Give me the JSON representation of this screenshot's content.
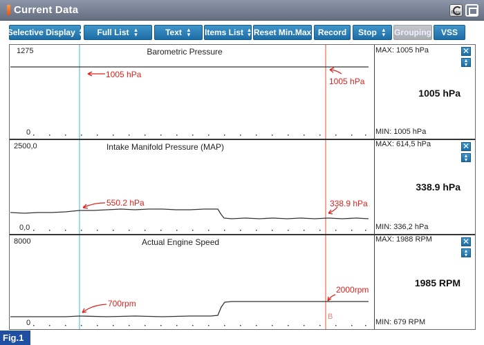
{
  "window": {
    "title": "Current Data",
    "retry_label": "Retry",
    "retry_icon": "retry-icon",
    "maximize_icon": "maximize-icon",
    "accent_color": "#2a7fb8"
  },
  "toolbar": [
    {
      "label": "Selective Display",
      "dropdown": true,
      "enabled": true
    },
    {
      "label": "Full List",
      "dropdown": true,
      "enabled": true
    },
    {
      "label": "Text",
      "dropdown": true,
      "enabled": true
    },
    {
      "label": "Items List",
      "dropdown": true,
      "enabled": true
    },
    {
      "label": "Reset Min.Max",
      "dropdown": false,
      "enabled": true
    },
    {
      "label": "Record",
      "dropdown": false,
      "enabled": true
    },
    {
      "label": "Stop",
      "dropdown": true,
      "enabled": true
    },
    {
      "label": "Grouping",
      "dropdown": false,
      "enabled": false
    },
    {
      "label": "VSS",
      "dropdown": false,
      "enabled": true
    }
  ],
  "graphs": [
    {
      "title": "Barometric Pressure",
      "y_max": "1275",
      "y_min": "0",
      "max_text": "MAX:  1005 hPa",
      "min_text": "MIN:  1005 hPa",
      "current": "1005 hPa",
      "cursor_a_label": "1005 hPa",
      "cursor_b_label": "1005 hPa"
    },
    {
      "title": "Intake Manifold Pressure (MAP)",
      "y_max": "2500,0",
      "y_min": "0,0",
      "max_text": "MAX: 614,5 hPa",
      "min_text": "MIN: 336,2 hPa",
      "current": "338.9 hPa",
      "cursor_a_label": "550.2 hPa",
      "cursor_b_label": "338.9 hPa"
    },
    {
      "title": "Actual Engine Speed",
      "y_max": "8000",
      "y_min": "0",
      "max_text": "MAX:  1988 RPM",
      "min_text": "MIN:   679 RPM",
      "current": "1985 RPM",
      "cursor_a_label": "700rpm",
      "cursor_b_label": "2000rpm",
      "cursor_b_marker": "B"
    }
  ],
  "cursor_colors": {
    "a": "#7fd3e6",
    "b": "#f08a70"
  },
  "close_icon": "close-icon",
  "scale_icon": "expand-vertical-icon",
  "figure_label": "Fig.1"
}
